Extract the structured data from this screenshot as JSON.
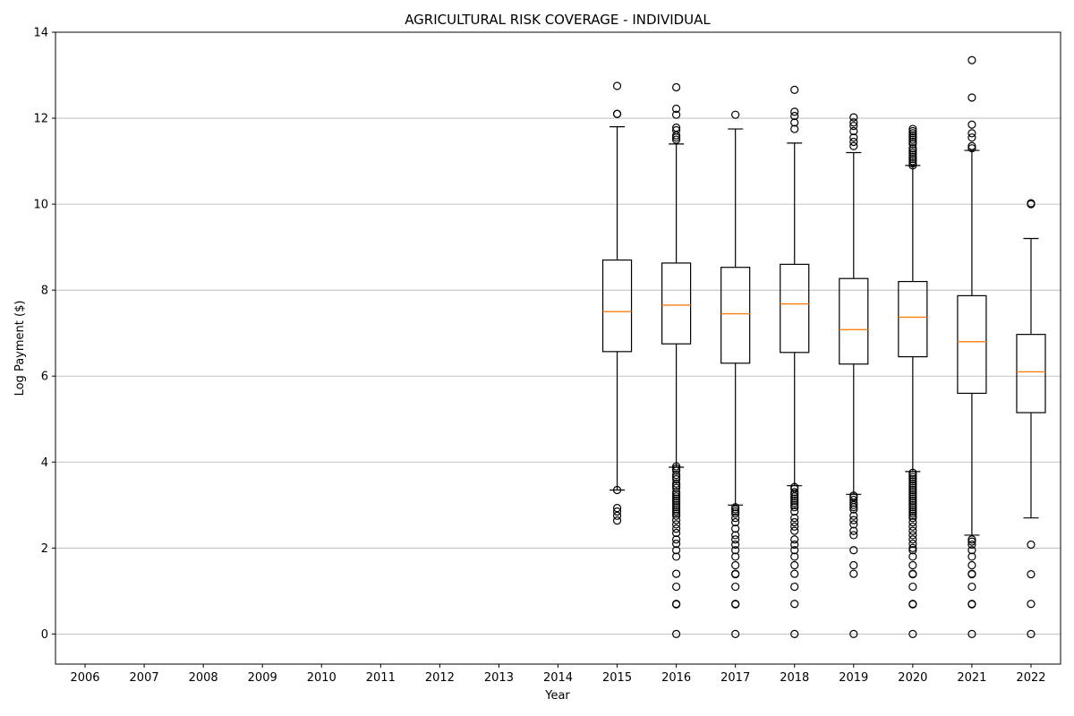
{
  "chart_data": {
    "type": "boxplot",
    "title": "AGRICULTURAL RISK COVERAGE - INDIVIDUAL",
    "xlabel": "Year",
    "ylabel": "Log Payment ($)",
    "ylim": [
      -0.7,
      14
    ],
    "yticks": [
      0,
      2,
      4,
      6,
      8,
      10,
      12,
      14
    ],
    "grid": "y",
    "categories": [
      "2006",
      "2007",
      "2008",
      "2009",
      "2010",
      "2011",
      "2012",
      "2013",
      "2014",
      "2015",
      "2016",
      "2017",
      "2018",
      "2019",
      "2020",
      "2021",
      "2022"
    ],
    "boxes": [
      {
        "year": "2015",
        "whislo": 3.35,
        "q1": 6.57,
        "med": 7.5,
        "q3": 8.7,
        "whishi": 11.8,
        "fliers": [
          12.75,
          12.1,
          12.1,
          3.35,
          2.93,
          2.85,
          2.75,
          2.64
        ]
      },
      {
        "year": "2016",
        "whislo": 3.88,
        "q1": 6.75,
        "med": 7.65,
        "q3": 8.63,
        "whishi": 11.4,
        "fliers": [
          12.72,
          12.22,
          12.08,
          11.78,
          11.72,
          11.6,
          11.55,
          11.5,
          3.9,
          3.85,
          3.8,
          3.7,
          3.65,
          3.6,
          3.5,
          3.45,
          3.4,
          3.3,
          3.25,
          3.2,
          3.15,
          3.1,
          3.05,
          3.0,
          2.95,
          2.9,
          2.85,
          2.8,
          2.75,
          2.65,
          2.55,
          2.45,
          2.35,
          2.2,
          2.1,
          1.95,
          1.8,
          1.4,
          1.1,
          0.7,
          0.69,
          0.0
        ]
      },
      {
        "year": "2017",
        "whislo": 3.0,
        "q1": 6.3,
        "med": 7.45,
        "q3": 8.53,
        "whishi": 11.75,
        "fliers": [
          12.08,
          2.95,
          2.9,
          2.85,
          2.8,
          2.7,
          2.6,
          2.45,
          2.3,
          2.2,
          2.08,
          1.95,
          1.8,
          1.6,
          1.4,
          1.39,
          1.1,
          0.7,
          0.69,
          0.0
        ]
      },
      {
        "year": "2018",
        "whislo": 3.45,
        "q1": 6.55,
        "med": 7.68,
        "q3": 8.6,
        "whishi": 11.42,
        "fliers": [
          12.66,
          12.15,
          12.05,
          11.9,
          11.75,
          3.42,
          3.38,
          3.3,
          3.25,
          3.2,
          3.15,
          3.1,
          3.05,
          3.0,
          2.95,
          2.85,
          2.7,
          2.6,
          2.5,
          2.4,
          2.2,
          2.08,
          1.95,
          1.8,
          1.6,
          1.4,
          1.1,
          0.7,
          0.0
        ]
      },
      {
        "year": "2019",
        "whislo": 3.25,
        "q1": 6.28,
        "med": 7.08,
        "q3": 8.27,
        "whishi": 11.2,
        "fliers": [
          12.02,
          11.9,
          11.82,
          11.7,
          11.55,
          11.45,
          11.35,
          3.22,
          3.18,
          3.12,
          3.05,
          3.0,
          2.95,
          2.9,
          2.75,
          2.65,
          2.55,
          2.4,
          2.3,
          1.95,
          1.6,
          1.4,
          0.0
        ]
      },
      {
        "year": "2020",
        "whislo": 3.78,
        "q1": 6.45,
        "med": 7.37,
        "q3": 8.2,
        "whishi": 10.9,
        "fliers": [
          11.75,
          11.7,
          11.65,
          11.6,
          11.55,
          11.5,
          11.45,
          11.4,
          11.3,
          11.25,
          11.2,
          11.15,
          11.1,
          11.05,
          11.0,
          10.95,
          10.9,
          3.75,
          3.7,
          3.65,
          3.6,
          3.55,
          3.5,
          3.45,
          3.4,
          3.35,
          3.3,
          3.25,
          3.2,
          3.15,
          3.1,
          3.05,
          3.0,
          2.95,
          2.9,
          2.85,
          2.8,
          2.75,
          2.7,
          2.6,
          2.5,
          2.4,
          2.3,
          2.2,
          2.1,
          2.0,
          1.95,
          1.8,
          1.6,
          1.4,
          1.39,
          1.1,
          0.7,
          0.69,
          0.0
        ]
      },
      {
        "year": "2021",
        "whislo": 2.3,
        "q1": 5.6,
        "med": 6.8,
        "q3": 7.87,
        "whishi": 11.25,
        "fliers": [
          13.35,
          12.48,
          11.85,
          11.65,
          11.55,
          11.35,
          11.3,
          2.2,
          2.15,
          2.08,
          1.95,
          1.8,
          1.6,
          1.4,
          1.39,
          1.1,
          0.7,
          0.69,
          0.0
        ]
      },
      {
        "year": "2022",
        "whislo": 2.7,
        "q1": 5.15,
        "med": 6.1,
        "q3": 6.97,
        "whishi": 9.2,
        "fliers": [
          10.02,
          10.0,
          2.08,
          1.39,
          0.7,
          0.0
        ]
      }
    ]
  }
}
